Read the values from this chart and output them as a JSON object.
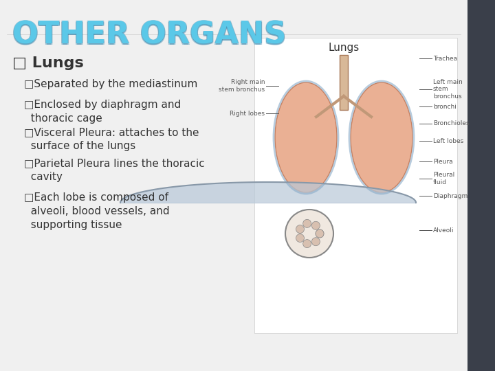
{
  "title": "OTHER ORGANS",
  "title_color": "#5bc8e8",
  "title_outline_color": "#2a7fa8",
  "background_color": "#f0f0f0",
  "right_panel_bg": "#ffffff",
  "dark_sidebar_color": "#3a3f4a",
  "main_bullet": "□ Lungs",
  "bullets": [
    "□Separated by the mediastinum",
    "□Enclosed by diaphragm and\n  thoracic cage",
    "□Visceral Pleura: attaches to the\n  surface of the lungs",
    "□Parietal Pleura lines the thoracic\n  cavity",
    "□Each lobe is composed of\n  alveoli, blood vessels, and\n  supporting tissue"
  ],
  "image_label": "Lungs",
  "font_color": "#333333",
  "bullet_font_size": 11,
  "main_bullet_font_size": 16
}
